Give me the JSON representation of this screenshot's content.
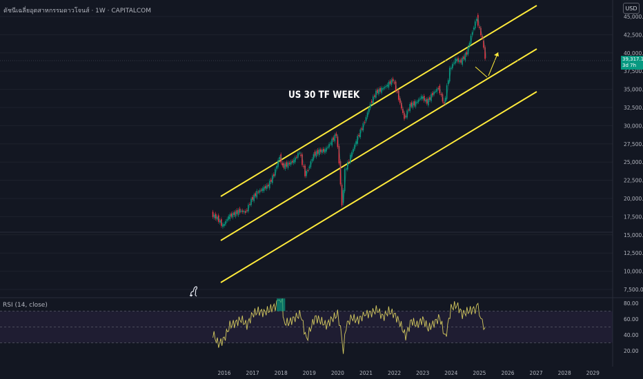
{
  "symbol_title": "ดัชนีเฉลี่ยอุตสาหกรรมดาวโจนส์ · 1W · CAPITALCOM",
  "currency": "USD",
  "annotation": "US 30 TF WEEK",
  "current_price": {
    "value": "39,317.1",
    "countdown": "3d 7h"
  },
  "rsi_label": "RSI (14, close)",
  "colors": {
    "background": "#131722",
    "grid": "#1e222d",
    "channel": "#ffeb3b",
    "up": "#089981",
    "down": "#f23645",
    "rsi_line": "#d4c95f",
    "rsi_band": "#2a2340"
  },
  "icons": [
    "dino-icon"
  ],
  "chart_data": [
    {
      "type": "line",
      "title": "",
      "price_axis": {
        "ticks": [
          45000,
          42500,
          40000,
          37500,
          35000,
          32500,
          30000,
          27500,
          25000,
          22500,
          20000,
          17500,
          15000,
          12500,
          10000,
          7500
        ],
        "tick_labels": [
          "45,000.0",
          "42,500.0",
          "40,000.0",
          "37,500.0",
          "35,000.0",
          "32,500.0",
          "30,000.0",
          "27,500.0",
          "25,000.0",
          "22,500.0",
          "20,000.0",
          "17,500.0",
          "15,000.0",
          "12,500.0",
          "10,000.0",
          "7,500.0"
        ]
      },
      "time_axis": {
        "labels": [
          "2016",
          "2017",
          "2018",
          "2019",
          "2020",
          "2021",
          "2022",
          "2023",
          "2024",
          "2025",
          "2026",
          "2027",
          "2028",
          "2029"
        ]
      },
      "series": [
        {
          "x": [
            2015.6,
            2015.8,
            2016.0,
            2016.2,
            2016.4,
            2016.6,
            2016.8,
            2017.0,
            2017.2,
            2017.4,
            2017.6,
            2017.8,
            2018.0,
            2018.1,
            2018.3,
            2018.5,
            2018.7,
            2018.9,
            2019.0,
            2019.2,
            2019.4,
            2019.6,
            2019.8,
            2020.0,
            2020.1,
            2020.2,
            2020.3,
            2020.5,
            2020.7,
            2020.9,
            2021.0,
            2021.2,
            2021.4,
            2021.6,
            2021.8,
            2022.0,
            2022.2,
            2022.4,
            2022.6,
            2022.8,
            2023.0,
            2023.2,
            2023.4,
            2023.6,
            2023.8,
            2024.0,
            2024.2,
            2024.4,
            2024.6,
            2024.8,
            2024.95,
            2025.05,
            2025.15,
            2025.25
          ],
          "values": [
            17800,
            17300,
            16200,
            17500,
            17900,
            18300,
            18100,
            19800,
            20800,
            21300,
            21800,
            23300,
            25800,
            24400,
            24700,
            25200,
            26400,
            23300,
            24000,
            26000,
            26500,
            26600,
            27700,
            28800,
            25000,
            19000,
            23800,
            25800,
            27900,
            29700,
            30600,
            33000,
            34600,
            35000,
            35600,
            36300,
            33800,
            31000,
            32800,
            33100,
            34000,
            33200,
            34400,
            35200,
            32900,
            37700,
            39100,
            38800,
            40000,
            43000,
            44800,
            43200,
            41900,
            39300
          ]
        }
      ]
    },
    {
      "type": "line",
      "title": "RSI (14, close)",
      "y_axis": {
        "ticks": [
          80,
          60,
          40,
          20
        ],
        "tick_labels": [
          "80.00",
          "60.00",
          "40.00",
          "20.00"
        ]
      },
      "bands": [
        30,
        50,
        70
      ],
      "series": [
        {
          "x": [
            2015.6,
            2015.8,
            2016.0,
            2016.2,
            2016.4,
            2016.6,
            2016.8,
            2017.0,
            2017.2,
            2017.4,
            2017.6,
            2017.8,
            2017.95,
            2018.05,
            2018.1,
            2018.3,
            2018.5,
            2018.7,
            2018.9,
            2019.0,
            2019.2,
            2019.4,
            2019.6,
            2019.8,
            2020.0,
            2020.1,
            2020.2,
            2020.3,
            2020.5,
            2020.7,
            2020.9,
            2021.0,
            2021.2,
            2021.4,
            2021.6,
            2021.8,
            2022.0,
            2022.2,
            2022.4,
            2022.6,
            2022.8,
            2023.0,
            2023.2,
            2023.4,
            2023.6,
            2023.8,
            2024.0,
            2024.2,
            2024.4,
            2024.6,
            2024.8,
            2024.95,
            2025.05,
            2025.15,
            2025.25
          ],
          "values": [
            42,
            28,
            35,
            52,
            55,
            60,
            52,
            66,
            70,
            68,
            72,
            76,
            86,
            82,
            55,
            56,
            62,
            66,
            34,
            44,
            62,
            58,
            52,
            60,
            66,
            48,
            18,
            52,
            62,
            58,
            64,
            66,
            68,
            72,
            62,
            70,
            66,
            55,
            38,
            58,
            52,
            60,
            48,
            55,
            62,
            36,
            74,
            78,
            66,
            70,
            72,
            74,
            60,
            52,
            35
          ]
        }
      ]
    }
  ]
}
